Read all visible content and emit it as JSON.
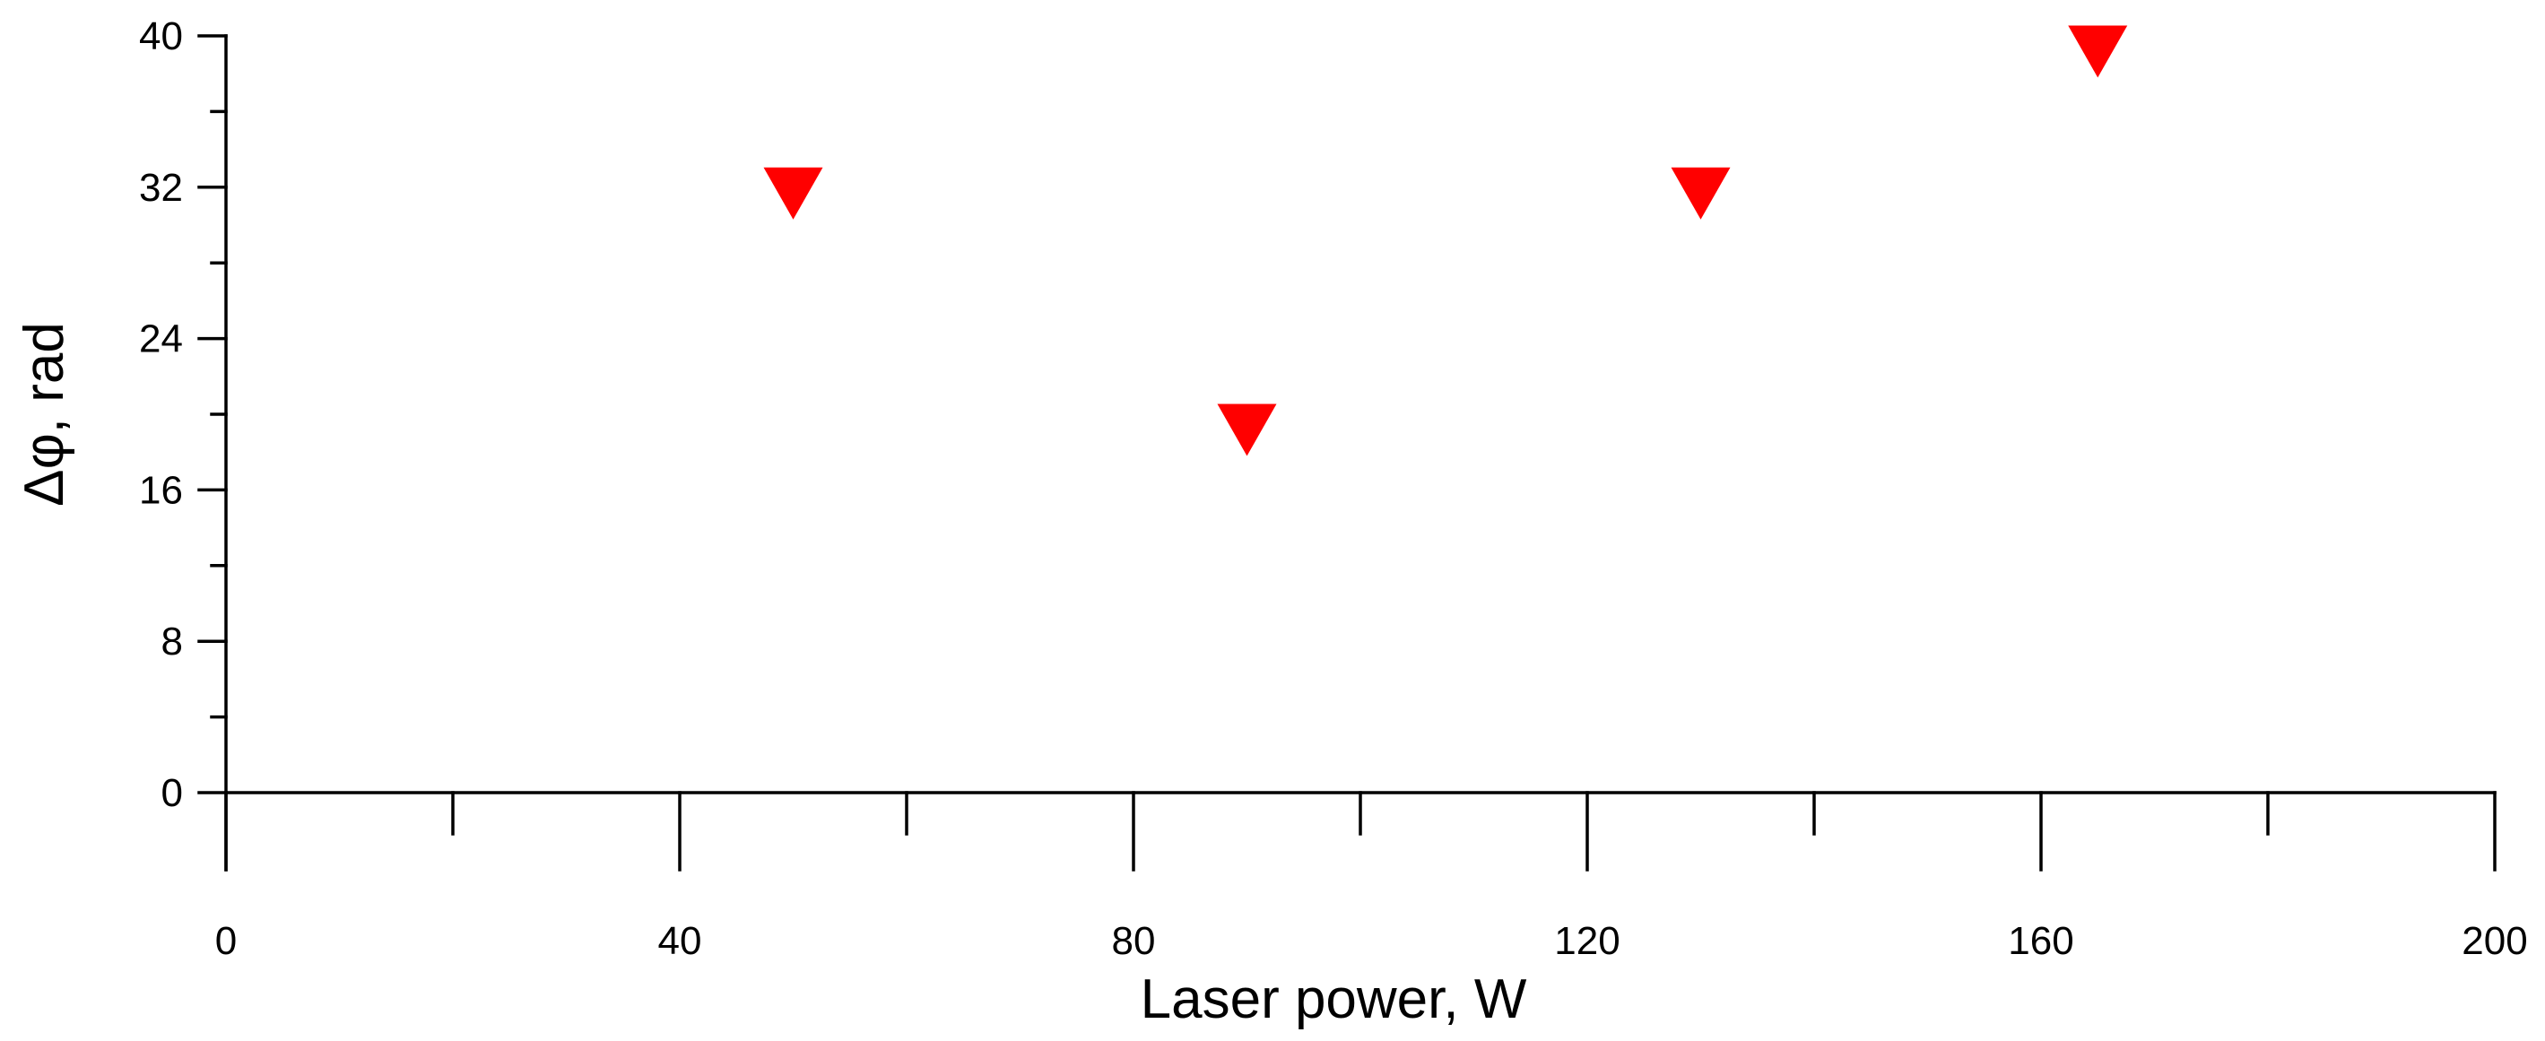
{
  "chart_data": {
    "type": "scatter",
    "xlabel": "Laser power, W",
    "ylabel": "Δφ, rad",
    "xlim": [
      0,
      200
    ],
    "ylim": [
      0,
      40
    ],
    "x_ticks": [
      "0",
      "40",
      "80",
      "120",
      "160",
      "200"
    ],
    "y_ticks": [
      "0",
      "8",
      "16",
      "24",
      "32",
      "40"
    ],
    "grid": false,
    "marker": "triangle-down",
    "colors": {
      "marker": "#ff0000"
    },
    "series": [
      {
        "x": [
          50,
          90,
          130,
          165
        ],
        "y": [
          32,
          19.5,
          32,
          39.5
        ]
      }
    ]
  }
}
